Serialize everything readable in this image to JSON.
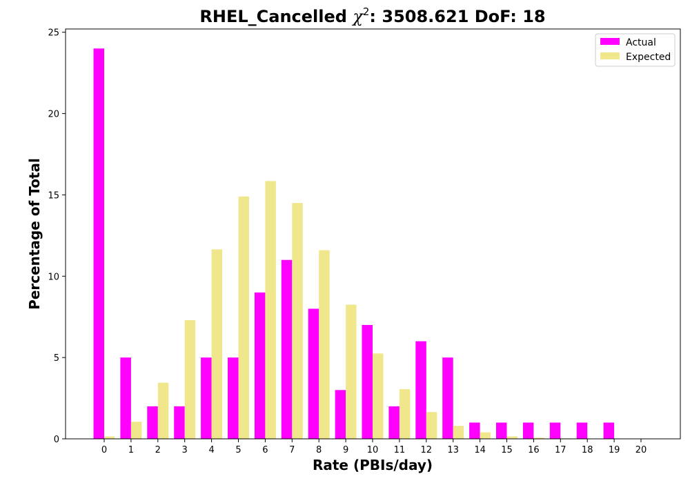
{
  "chart_data": {
    "type": "bar",
    "title": "RHEL_Cancelled",
    "title_stat": "χ²: 3508.621 DoF: 18",
    "title_prefix": "RHEL_Cancelled ",
    "title_chi": "χ",
    "title_sup": "2",
    "title_suffix": ": 3508.621 DoF: 18",
    "xlabel": "Rate (PBIs/day)",
    "ylabel": "Percentage of Total",
    "categories": [
      "0",
      "1",
      "2",
      "3",
      "4",
      "5",
      "6",
      "7",
      "8",
      "9",
      "10",
      "11",
      "12",
      "13",
      "14",
      "15",
      "16",
      "17",
      "18",
      "19",
      "20"
    ],
    "ylim": [
      0,
      25.2
    ],
    "yticks": [
      0,
      5,
      10,
      15,
      20,
      25
    ],
    "legend_position": "top-right",
    "grid": false,
    "series": [
      {
        "name": "Actual",
        "color": "#ff00ff",
        "values": [
          24,
          5,
          2,
          2,
          5,
          5,
          9,
          11,
          8,
          3,
          7,
          2,
          6,
          5,
          1,
          1,
          1,
          1,
          1,
          1,
          0
        ]
      },
      {
        "name": "Expected",
        "color": "#f0e68c",
        "values": [
          0.15,
          1.05,
          3.45,
          7.3,
          11.65,
          14.9,
          15.85,
          14.5,
          11.6,
          8.25,
          5.25,
          3.05,
          1.65,
          0.8,
          0.4,
          0.15,
          0.07,
          0.03,
          0.01,
          0,
          0
        ]
      }
    ]
  }
}
